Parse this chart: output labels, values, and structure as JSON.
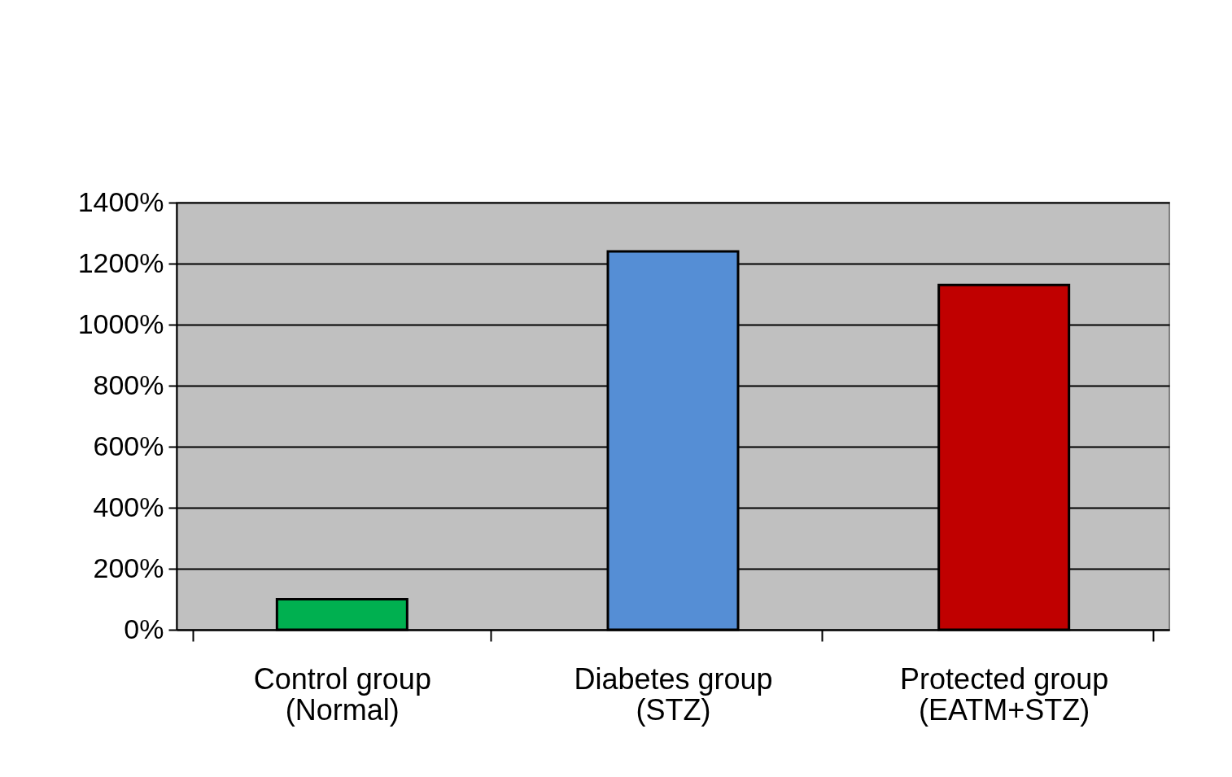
{
  "chart_data": {
    "type": "bar",
    "categories": [
      "Control group\n(Normal)",
      "Diabetes group\n(STZ)",
      "Protected group\n(EATM+STZ)"
    ],
    "values": [
      100,
      1240,
      1130
    ],
    "colors": [
      "#00b050",
      "#558ed5",
      "#c00000"
    ],
    "ylim": [
      0,
      1400
    ],
    "yticks": [
      {
        "value": 0,
        "label": "0%"
      },
      {
        "value": 200,
        "label": "200%"
      },
      {
        "value": 400,
        "label": "400%"
      },
      {
        "value": 600,
        "label": "600%"
      },
      {
        "value": 800,
        "label": "800%"
      },
      {
        "value": 1000,
        "label": "1000%"
      },
      {
        "value": 1200,
        "label": "1200%"
      },
      {
        "value": 1400,
        "label": "1400%"
      }
    ],
    "grid": "y",
    "legend": false
  }
}
